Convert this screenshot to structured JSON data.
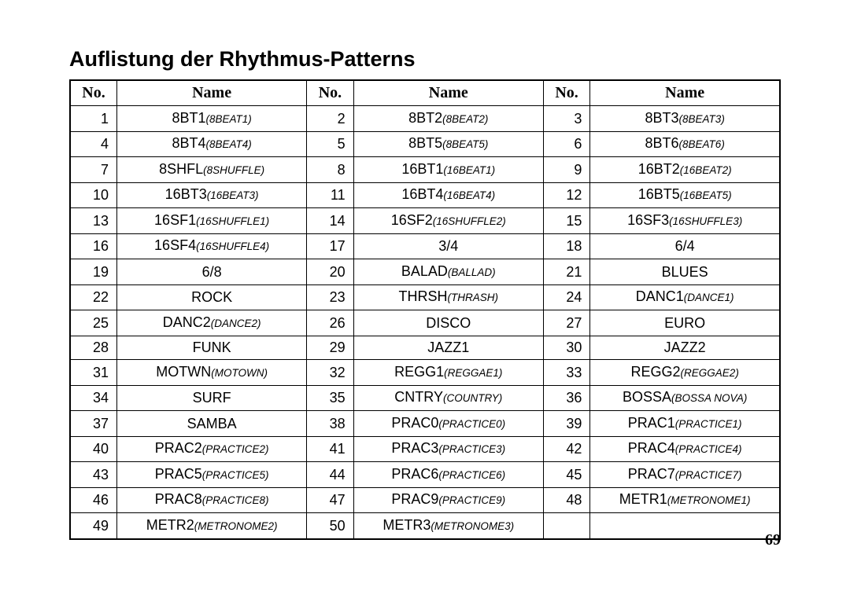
{
  "title": "Auflistung der Rhythmus-Patterns",
  "page_number": "69",
  "headers": {
    "no": "No.",
    "name": "Name"
  },
  "entries": [
    {
      "no": 1,
      "name": "8BT1",
      "alt": "(8BEAT1)"
    },
    {
      "no": 2,
      "name": "8BT2",
      "alt": "(8BEAT2)"
    },
    {
      "no": 3,
      "name": "8BT3",
      "alt": "(8BEAT3)"
    },
    {
      "no": 4,
      "name": "8BT4",
      "alt": "(8BEAT4)"
    },
    {
      "no": 5,
      "name": "8BT5",
      "alt": "(8BEAT5)"
    },
    {
      "no": 6,
      "name": "8BT6",
      "alt": "(8BEAT6)"
    },
    {
      "no": 7,
      "name": "8SHFL",
      "alt": "(8SHUFFLE)"
    },
    {
      "no": 8,
      "name": "16BT1",
      "alt": "(16BEAT1)"
    },
    {
      "no": 9,
      "name": "16BT2",
      "alt": "(16BEAT2)"
    },
    {
      "no": 10,
      "name": "16BT3",
      "alt": "(16BEAT3)"
    },
    {
      "no": 11,
      "name": "16BT4",
      "alt": "(16BEAT4)"
    },
    {
      "no": 12,
      "name": "16BT5",
      "alt": "(16BEAT5)"
    },
    {
      "no": 13,
      "name": "16SF1",
      "alt": "(16SHUFFLE1)"
    },
    {
      "no": 14,
      "name": "16SF2",
      "alt": "(16SHUFFLE2)"
    },
    {
      "no": 15,
      "name": "16SF3",
      "alt": "(16SHUFFLE3)"
    },
    {
      "no": 16,
      "name": "16SF4",
      "alt": "(16SHUFFLE4)"
    },
    {
      "no": 17,
      "name": "3/4",
      "alt": ""
    },
    {
      "no": 18,
      "name": "6/4",
      "alt": ""
    },
    {
      "no": 19,
      "name": "6/8",
      "alt": ""
    },
    {
      "no": 20,
      "name": "BALAD",
      "alt": "(BALLAD)"
    },
    {
      "no": 21,
      "name": "BLUES",
      "alt": ""
    },
    {
      "no": 22,
      "name": "ROCK",
      "alt": ""
    },
    {
      "no": 23,
      "name": "THRSH",
      "alt": "(THRASH)"
    },
    {
      "no": 24,
      "name": "DANC1",
      "alt": "(DANCE1)"
    },
    {
      "no": 25,
      "name": "DANC2",
      "alt": "(DANCE2)"
    },
    {
      "no": 26,
      "name": "DISCO",
      "alt": ""
    },
    {
      "no": 27,
      "name": "EURO",
      "alt": ""
    },
    {
      "no": 28,
      "name": "FUNK",
      "alt": ""
    },
    {
      "no": 29,
      "name": "JAZZ1",
      "alt": ""
    },
    {
      "no": 30,
      "name": "JAZZ2",
      "alt": ""
    },
    {
      "no": 31,
      "name": "MOTWN",
      "alt": "(MOTOWN)"
    },
    {
      "no": 32,
      "name": "REGG1",
      "alt": "(REGGAE1)"
    },
    {
      "no": 33,
      "name": "REGG2",
      "alt": "(REGGAE2)"
    },
    {
      "no": 34,
      "name": "SURF",
      "alt": ""
    },
    {
      "no": 35,
      "name": "CNTRY",
      "alt": "(COUNTRY)"
    },
    {
      "no": 36,
      "name": "BOSSA",
      "alt": "(BOSSA NOVA)"
    },
    {
      "no": 37,
      "name": "SAMBA",
      "alt": ""
    },
    {
      "no": 38,
      "name": "PRAC0",
      "alt": "(PRACTICE0)"
    },
    {
      "no": 39,
      "name": "PRAC1",
      "alt": "(PRACTICE1)"
    },
    {
      "no": 40,
      "name": "PRAC2",
      "alt": "(PRACTICE2)"
    },
    {
      "no": 41,
      "name": "PRAC3",
      "alt": "(PRACTICE3)"
    },
    {
      "no": 42,
      "name": "PRAC4",
      "alt": "(PRACTICE4)"
    },
    {
      "no": 43,
      "name": "PRAC5",
      "alt": "(PRACTICE5)"
    },
    {
      "no": 44,
      "name": "PRAC6",
      "alt": "(PRACTICE6)"
    },
    {
      "no": 45,
      "name": "PRAC7",
      "alt": "(PRACTICE7)"
    },
    {
      "no": 46,
      "name": "PRAC8",
      "alt": "(PRACTICE8)"
    },
    {
      "no": 47,
      "name": "PRAC9",
      "alt": "(PRACTICE9)"
    },
    {
      "no": 48,
      "name": "METR1",
      "alt": "(METRONOME1)"
    },
    {
      "no": 49,
      "name": "METR2",
      "alt": "(METRONOME2)"
    },
    {
      "no": 50,
      "name": "METR3",
      "alt": "(METRONOME3)"
    }
  ]
}
